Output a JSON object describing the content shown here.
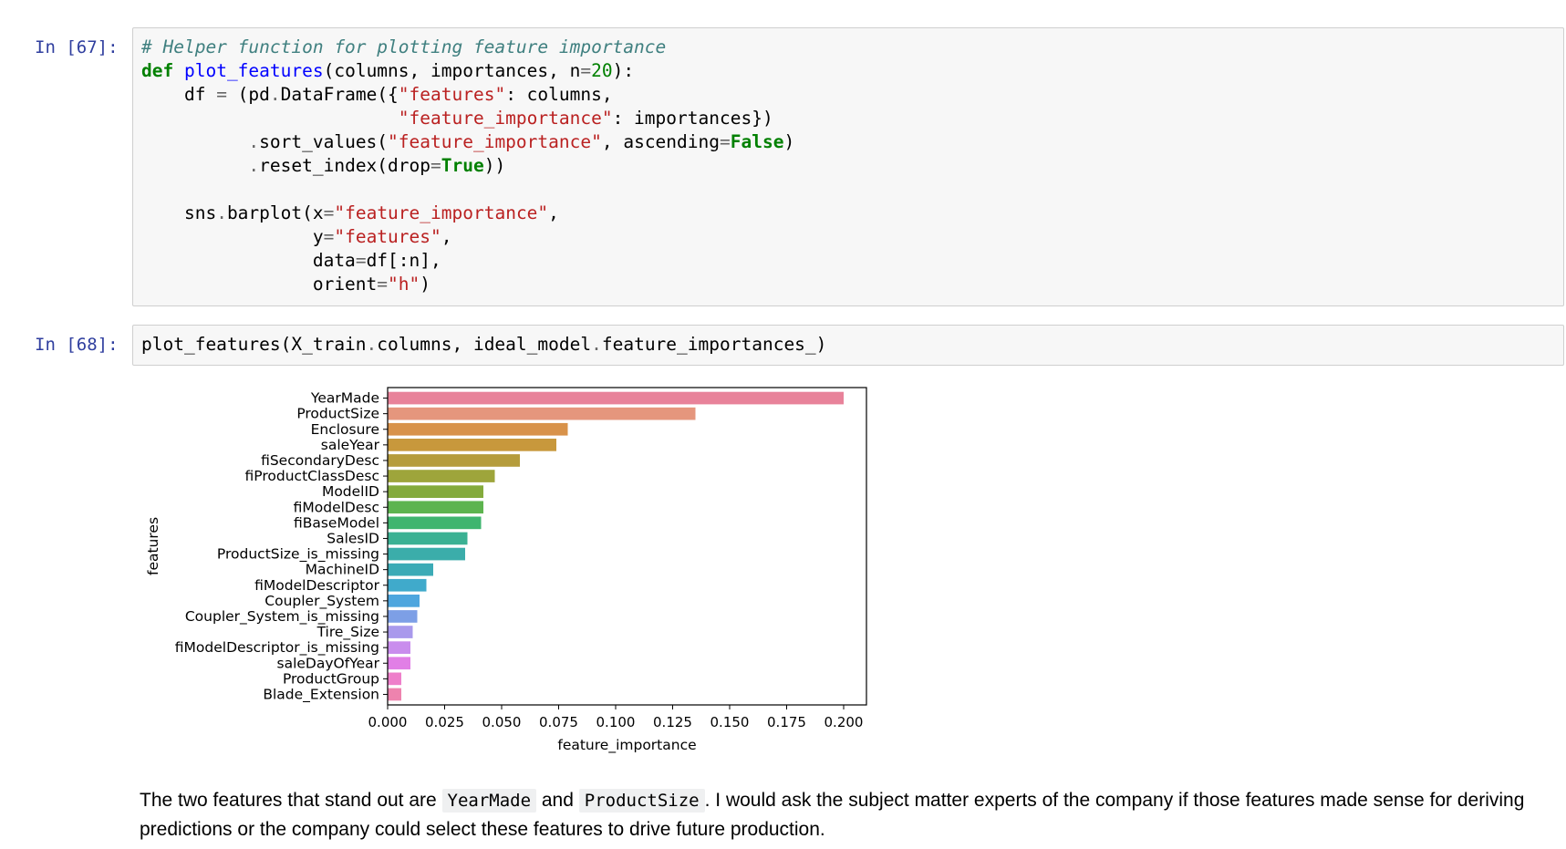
{
  "cells": [
    {
      "prompt": "In [67]:",
      "code_lines": [
        [
          {
            "t": "# Helper function for plotting feature importance",
            "c": "comment"
          }
        ],
        [
          {
            "t": "def",
            "c": "kw"
          },
          {
            "t": " "
          },
          {
            "t": "plot_features",
            "c": "fn"
          },
          {
            "t": "(columns, importances, n"
          },
          {
            "t": "=",
            "c": "op"
          },
          {
            "t": "20",
            "c": "num"
          },
          {
            "t": "):"
          }
        ],
        [
          {
            "t": "    df "
          },
          {
            "t": "=",
            "c": "op"
          },
          {
            "t": " (pd"
          },
          {
            "t": ".",
            "c": "op"
          },
          {
            "t": "DataFrame({"
          },
          {
            "t": "\"features\"",
            "c": "str"
          },
          {
            "t": ": columns,"
          }
        ],
        [
          {
            "t": "                        "
          },
          {
            "t": "\"feature_importance\"",
            "c": "str"
          },
          {
            "t": ": importances})"
          }
        ],
        [
          {
            "t": "          "
          },
          {
            "t": ".",
            "c": "op"
          },
          {
            "t": "sort_values("
          },
          {
            "t": "\"feature_importance\"",
            "c": "str"
          },
          {
            "t": ", ascending"
          },
          {
            "t": "=",
            "c": "op"
          },
          {
            "t": "False",
            "c": "kwconst"
          },
          {
            "t": ")"
          }
        ],
        [
          {
            "t": "          "
          },
          {
            "t": ".",
            "c": "op"
          },
          {
            "t": "reset_index(drop"
          },
          {
            "t": "=",
            "c": "op"
          },
          {
            "t": "True",
            "c": "kwconst"
          },
          {
            "t": "))"
          }
        ],
        [
          {
            "t": ""
          }
        ],
        [
          {
            "t": "    sns"
          },
          {
            "t": ".",
            "c": "op"
          },
          {
            "t": "barplot(x"
          },
          {
            "t": "=",
            "c": "op"
          },
          {
            "t": "\"feature_importance\"",
            "c": "str"
          },
          {
            "t": ","
          }
        ],
        [
          {
            "t": "                y"
          },
          {
            "t": "=",
            "c": "op"
          },
          {
            "t": "\"features\"",
            "c": "str"
          },
          {
            "t": ","
          }
        ],
        [
          {
            "t": "                data"
          },
          {
            "t": "=",
            "c": "op"
          },
          {
            "t": "df[:n],"
          }
        ],
        [
          {
            "t": "                orient"
          },
          {
            "t": "=",
            "c": "op"
          },
          {
            "t": "\"h\"",
            "c": "str"
          },
          {
            "t": ")"
          }
        ]
      ]
    },
    {
      "prompt": "In [68]:",
      "code_lines": [
        [
          {
            "t": "plot_features(X_train"
          },
          {
            "t": ".",
            "c": "op"
          },
          {
            "t": "columns, ideal_model"
          },
          {
            "t": ".",
            "c": "op"
          },
          {
            "t": "feature_importances_)"
          }
        ]
      ]
    }
  ],
  "chart_data": {
    "type": "bar",
    "orientation": "horizontal",
    "categories": [
      "YearMade",
      "ProductSize",
      "Enclosure",
      "saleYear",
      "fiSecondaryDesc",
      "fiProductClassDesc",
      "ModelID",
      "fiModelDesc",
      "fiBaseModel",
      "SalesID",
      "ProductSize_is_missing",
      "MachineID",
      "fiModelDescriptor",
      "Coupler_System",
      "Coupler_System_is_missing",
      "Tire_Size",
      "fiModelDescriptor_is_missing",
      "saleDayOfYear",
      "ProductGroup",
      "Blade_Extension"
    ],
    "values": [
      0.2,
      0.135,
      0.079,
      0.074,
      0.058,
      0.047,
      0.042,
      0.042,
      0.041,
      0.035,
      0.034,
      0.02,
      0.017,
      0.014,
      0.013,
      0.011,
      0.01,
      0.01,
      0.006,
      0.006
    ],
    "colors": [
      "#e8829a",
      "#e5967d",
      "#d8924a",
      "#c8983c",
      "#b59c3c",
      "#9ea53b",
      "#84ab3c",
      "#5db44f",
      "#3fb56f",
      "#3bb193",
      "#3badaa",
      "#3cabb6",
      "#40aacb",
      "#4ea6de",
      "#7d9fe6",
      "#a999ec",
      "#c98ded",
      "#e17fe6",
      "#ee7fca",
      "#ee83ae"
    ],
    "xticks": [
      "0.000",
      "0.025",
      "0.050",
      "0.075",
      "0.100",
      "0.125",
      "0.150",
      "0.175",
      "0.200"
    ],
    "xlim": [
      0,
      0.21
    ],
    "xlabel": "feature_importance",
    "ylabel": "features",
    "title": "",
    "grid": false
  },
  "markdown": {
    "pre": "The two features that stand out are ",
    "code1": "YearMade",
    "mid": " and ",
    "code2": "ProductSize",
    "post": ". I would ask the subject matter experts of the company if those features made sense for deriving predictions or the company could select these features to drive future production."
  }
}
